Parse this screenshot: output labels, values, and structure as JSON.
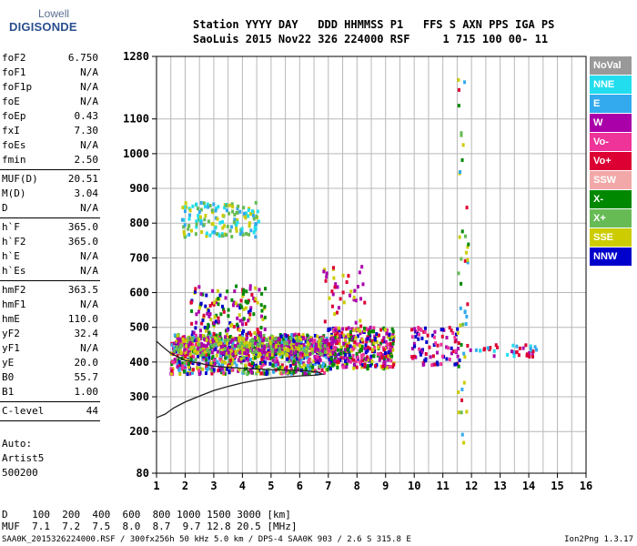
{
  "logo": {
    "line1": "Lowell",
    "line2": "DIGISONDE"
  },
  "header": {
    "row1": "Station YYYY DAY   DDD HHMMSS P1   FFS S AXN PPS IGA PS",
    "row2": "SaoLuis 2015 Nov22 326 224000 RSF     1 715 100 00- 11"
  },
  "params": [
    {
      "label": "foF2",
      "value": "6.750"
    },
    {
      "label": "foF1",
      "value": "N/A"
    },
    {
      "label": "foF1p",
      "value": "N/A"
    },
    {
      "label": "foE",
      "value": "N/A"
    },
    {
      "label": "foEp",
      "value": "0.43"
    },
    {
      "label": "fxI",
      "value": "7.30"
    },
    {
      "label": "foEs",
      "value": "N/A"
    },
    {
      "label": "fmin",
      "value": "2.50"
    },
    {
      "sep": true
    },
    {
      "label": "MUF(D)",
      "value": "20.51"
    },
    {
      "label": "M(D)",
      "value": "3.04"
    },
    {
      "label": "D",
      "value": "N/A"
    },
    {
      "sep": true
    },
    {
      "label": "h`F",
      "value": "365.0"
    },
    {
      "label": "h`F2",
      "value": "365.0"
    },
    {
      "label": "h`E",
      "value": "N/A"
    },
    {
      "label": "h`Es",
      "value": "N/A"
    },
    {
      "sep": true
    },
    {
      "label": "hmF2",
      "value": "363.5"
    },
    {
      "label": "hmF1",
      "value": "N/A"
    },
    {
      "label": "hmE",
      "value": "110.0"
    },
    {
      "label": "yF2",
      "value": "32.4"
    },
    {
      "label": "yF1",
      "value": "N/A"
    },
    {
      "label": "yE",
      "value": "20.0"
    },
    {
      "label": "B0",
      "value": "55.7"
    },
    {
      "label": "B1",
      "value": "1.00"
    },
    {
      "sep": true
    },
    {
      "label": "C-level",
      "value": "44"
    },
    {
      "sep": true
    }
  ],
  "auto_text": [
    "Auto:",
    "Artist5",
    "500200"
  ],
  "legend": [
    {
      "label": "NoVal",
      "color": "#999999"
    },
    {
      "label": "NNE",
      "color": "#22ddee"
    },
    {
      "label": "E",
      "color": "#33aaee"
    },
    {
      "label": "W",
      "color": "#aa00aa"
    },
    {
      "label": "Vo-",
      "color": "#ee3399"
    },
    {
      "label": "Vo+",
      "color": "#dd0033"
    },
    {
      "label": "SSW",
      "color": "#f2a8a8"
    },
    {
      "label": "X-",
      "color": "#008800"
    },
    {
      "label": "X+",
      "color": "#66bb55"
    },
    {
      "label": "SSE",
      "color": "#cccc00"
    },
    {
      "label": "NNW",
      "color": "#0000cc"
    }
  ],
  "d_table": {
    "row1": "D    100  200  400  600  800 1000 1500 3000 [km]",
    "row2": "MUF  7.1  7.2  7.5  8.0  8.7  9.7 12.8 20.5 [MHz]"
  },
  "footer": "SAA0K_2015326224000.RSF / 300fx256h 50 kHz 5.0 km / DPS-4 SAA0K 903 / 2.6 S 315.8 E",
  "version": "Ion2Png 1.3.17",
  "chart_data": {
    "type": "scatter",
    "xlim": [
      1,
      16
    ],
    "ylim": [
      80,
      1280
    ],
    "x_ticks": [
      1,
      2,
      3,
      4,
      5,
      6,
      7,
      8,
      9,
      10,
      11,
      12,
      13,
      14,
      15,
      16
    ],
    "y_ticks": [
      80,
      200,
      300,
      400,
      500,
      600,
      700,
      800,
      900,
      1000,
      1100,
      1280
    ],
    "x_minor_step": 0.5,
    "grid": true,
    "trace_curve": [
      [
        1.0,
        240
      ],
      [
        1.3,
        250
      ],
      [
        1.6,
        268
      ],
      [
        2.0,
        285
      ],
      [
        2.5,
        302
      ],
      [
        3.0,
        318
      ],
      [
        3.5,
        330
      ],
      [
        4.0,
        340
      ],
      [
        4.5,
        348
      ],
      [
        5.0,
        354
      ],
      [
        5.5,
        357
      ],
      [
        6.0,
        360
      ],
      [
        6.5,
        362
      ],
      [
        6.8,
        365
      ],
      [
        6.6,
        372
      ],
      [
        6.0,
        376
      ],
      [
        5.0,
        378
      ],
      [
        4.0,
        382
      ],
      [
        3.0,
        388
      ],
      [
        2.0,
        405
      ],
      [
        1.5,
        425
      ],
      [
        1.2,
        445
      ],
      [
        1.0,
        460
      ]
    ],
    "clusters": [
      {
        "x": [
          1.5,
          7.0
        ],
        "y": [
          365,
          480
        ],
        "n": 900,
        "colors": [
          "#aa00aa",
          "#cccc00",
          "#dd0033",
          "#ee3399",
          "#008800",
          "#66bb55",
          "#33aaee",
          "#0000cc"
        ]
      },
      {
        "x": [
          1.6,
          7.0
        ],
        "y": [
          420,
          470
        ],
        "n": 350,
        "colors": [
          "#cccc00",
          "#66bb55",
          "#aa00aa"
        ]
      },
      {
        "x": [
          2.2,
          4.8
        ],
        "y": [
          480,
          620
        ],
        "n": 150,
        "colors": [
          "#aa00aa",
          "#dd0033",
          "#0000cc",
          "#cccc00",
          "#008800"
        ]
      },
      {
        "x": [
          1.9,
          4.6
        ],
        "y": [
          760,
          860
        ],
        "n": 150,
        "colors": [
          "#cccc00",
          "#66bb55",
          "#22ddee",
          "#33aaee"
        ]
      },
      {
        "x": [
          7.0,
          9.3
        ],
        "y": [
          380,
          500
        ],
        "n": 380,
        "colors": [
          "#aa00aa",
          "#dd0033",
          "#ee3399",
          "#0000cc",
          "#008800",
          "#cccc00"
        ]
      },
      {
        "x": [
          9.9,
          11.6
        ],
        "y": [
          390,
          500
        ],
        "n": 90,
        "colors": [
          "#dd0033",
          "#aa00aa",
          "#ee3399",
          "#0000cc"
        ]
      },
      {
        "x": [
          11.8,
          14.3
        ],
        "y": [
          415,
          450
        ],
        "n": 40,
        "colors": [
          "#dd0033",
          "#aa00aa",
          "#22ddee",
          "#33aaee"
        ]
      },
      {
        "x": [
          11.5,
          11.9
        ],
        "y": [
          160,
          1260
        ],
        "n": 45,
        "colors": [
          "#cccc00",
          "#008800",
          "#66bb55",
          "#dd0033",
          "#33aaee"
        ]
      },
      {
        "x": [
          6.8,
          8.3
        ],
        "y": [
          500,
          680
        ],
        "n": 40,
        "colors": [
          "#cccc00",
          "#aa00aa",
          "#dd0033"
        ]
      }
    ]
  }
}
